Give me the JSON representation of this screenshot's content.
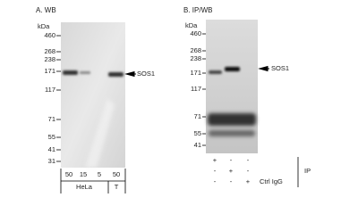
{
  "panels": [
    {
      "label": "A. WB",
      "unit": "kDa",
      "markers": [
        "460",
        "268",
        "238",
        "171",
        "117",
        "71",
        "55",
        "41",
        "31"
      ],
      "lanes": [
        "50",
        "15",
        "5",
        "50"
      ],
      "groups": [
        "HeLa",
        "T"
      ],
      "band_label": "SOS1"
    },
    {
      "label": "B. IP/WB",
      "unit": "kDa",
      "markers": [
        "460",
        "268",
        "238",
        "171",
        "117",
        "71",
        "55",
        "41"
      ],
      "band_label": "SOS1",
      "ip_rows": [
        {
          "signs": [
            "+",
            "-",
            "-"
          ]
        },
        {
          "signs": [
            "-",
            "+",
            "-"
          ]
        },
        {
          "signs": [
            "-",
            "-",
            "+"
          ],
          "label": "Ctrl IgG"
        }
      ],
      "ip_label": "IP"
    }
  ]
}
